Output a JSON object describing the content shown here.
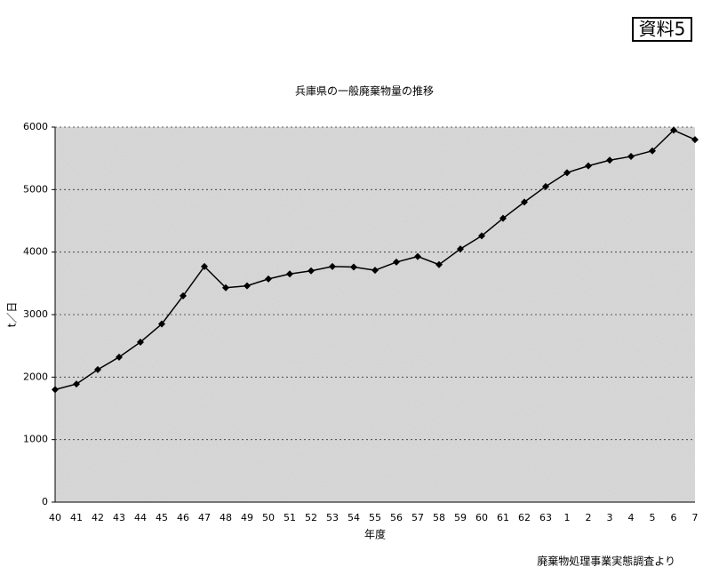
{
  "chart_data": {
    "type": "line",
    "badge": "資料5",
    "title": "兵庫県の一般廃棄物量の推移",
    "y_label": "t／日",
    "x_label": "年度",
    "source": "廃棄物処理事業実態調査より",
    "categories": [
      "40",
      "41",
      "42",
      "43",
      "44",
      "45",
      "46",
      "47",
      "48",
      "49",
      "50",
      "51",
      "52",
      "53",
      "54",
      "55",
      "56",
      "57",
      "58",
      "59",
      "60",
      "61",
      "62",
      "63",
      "1",
      "2",
      "3",
      "4",
      "5",
      "6",
      "7"
    ],
    "values": [
      1800,
      1890,
      2120,
      2320,
      2560,
      2850,
      3300,
      3770,
      3430,
      3460,
      3570,
      3650,
      3700,
      3770,
      3760,
      3710,
      3840,
      3930,
      3800,
      4050,
      4260,
      4540,
      4800,
      5050,
      5270,
      5380,
      5470,
      5530,
      5620,
      5950,
      5800
    ],
    "color": "#000000",
    "ylim": [
      0,
      6000
    ],
    "yticks": [
      0,
      1000,
      2000,
      3000,
      4000,
      5000,
      6000
    ],
    "grid": true
  }
}
